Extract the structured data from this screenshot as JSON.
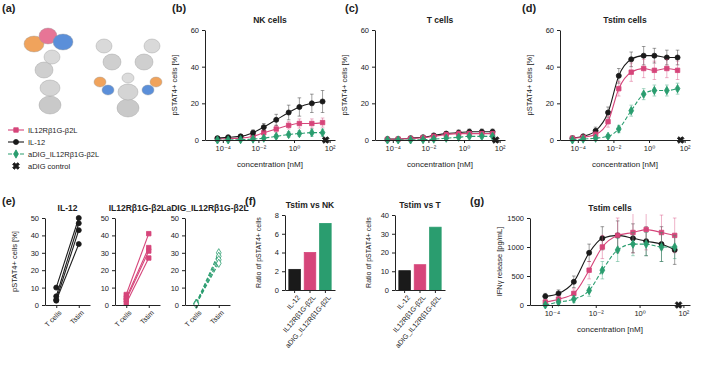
{
  "chart_data": [
    {
      "type": "structure",
      "panel_label": "(a)"
    },
    {
      "type": "line",
      "panel_label": "(b)",
      "title": "NK cells",
      "xlabel": "concentration [nM]",
      "ylabel": "pSTAT4+ cells [%]",
      "log": "x",
      "xlim": [
        1e-05,
        200
      ],
      "xticks": [
        {
          "value": 0.0001,
          "label": "10⁻⁴"
        },
        {
          "value": 0.01,
          "label": "10⁻²"
        },
        {
          "value": 1,
          "label": "10⁰"
        },
        {
          "value": 100,
          "label": "10²"
        }
      ],
      "ylim": [
        0,
        60
      ],
      "yticks": [
        0,
        20,
        40,
        60
      ],
      "legend": "left",
      "x": [
        5e-05,
        0.0002,
        0.001,
        0.005,
        0.02,
        0.1,
        0.5,
        2,
        10,
        40
      ],
      "series": [
        {
          "name": "IL12Rβ1G-β2L",
          "color": "#d6457a",
          "marker": "square",
          "line_style": "solid",
          "values": [
            0.5,
            0.8,
            1,
            2,
            4,
            6,
            8,
            9,
            9,
            9.5
          ],
          "errors": [
            0.3,
            0.4,
            0.5,
            1,
            1.5,
            2,
            2,
            2.5,
            2.5,
            2.5
          ]
        },
        {
          "name": "IL-12",
          "color": "#1a1a1a",
          "marker": "circle",
          "line_style": "solid",
          "values": [
            1,
            1.5,
            2,
            4,
            7,
            11,
            15,
            18,
            20,
            21
          ],
          "errors": [
            0.5,
            0.6,
            1,
            1.5,
            2,
            3,
            4,
            5,
            5,
            6
          ]
        },
        {
          "name": "aDIG_IL12Rβ1G-β2L",
          "color": "#2a9d6f",
          "marker": "diamond",
          "line_style": "dashed",
          "values": [
            0,
            0,
            0.2,
            0.5,
            1,
            2,
            3,
            3.5,
            4,
            4
          ],
          "errors": [
            0.2,
            0.2,
            0.3,
            0.5,
            0.8,
            1,
            1.5,
            1.5,
            2,
            2
          ]
        },
        {
          "name": "aDIG control",
          "color": "#1a1a1a",
          "marker": "x",
          "line_style": "none",
          "x": [
            60
          ],
          "values": [
            0
          ]
        }
      ]
    },
    {
      "type": "line",
      "panel_label": "(c)",
      "title": "T cells",
      "xlabel": "concentration [nM]",
      "ylabel": "pSTAT4+ cells [%]",
      "log": "x",
      "xlim": [
        1e-05,
        200
      ],
      "xticks": [
        {
          "value": 0.0001,
          "label": "10⁻⁴"
        },
        {
          "value": 0.01,
          "label": "10⁻²"
        },
        {
          "value": 1,
          "label": "10⁰"
        },
        {
          "value": 100,
          "label": "10²"
        }
      ],
      "ylim": [
        0,
        60
      ],
      "yticks": [
        0,
        20,
        40,
        60
      ],
      "x": [
        5e-05,
        0.0002,
        0.001,
        0.005,
        0.02,
        0.1,
        0.5,
        2,
        10,
        40
      ],
      "series": [
        {
          "color": "#1a1a1a",
          "marker": "circle",
          "line_style": "solid",
          "values": [
            0.5,
            0.5,
            1,
            1.5,
            2.5,
            3.5,
            4,
            4.5,
            4.5,
            4.5
          ],
          "errors": [
            0.5,
            0.5,
            0.5,
            0.8,
            1,
            1,
            1.5,
            1.5,
            1.5,
            1.5
          ]
        },
        {
          "color": "#d6457a",
          "marker": "square",
          "line_style": "solid",
          "values": [
            0.3,
            0.5,
            0.8,
            1.2,
            2,
            3,
            3.5,
            3.5,
            3.5,
            3.5
          ],
          "errors": [
            0.3,
            0.4,
            0.5,
            0.6,
            0.8,
            1,
            1,
            1,
            1,
            1
          ]
        },
        {
          "color": "#2a9d6f",
          "marker": "diamond",
          "line_style": "dashed",
          "values": [
            0,
            0,
            0,
            0.2,
            0.5,
            1,
            1.5,
            2,
            2,
            2
          ],
          "errors": [
            0.2,
            0.2,
            0.2,
            0.3,
            0.4,
            0.5,
            0.6,
            0.8,
            0.8,
            0.8
          ]
        },
        {
          "color": "#1a1a1a",
          "marker": "x",
          "line_style": "none",
          "x": [
            60
          ],
          "values": [
            0
          ]
        }
      ]
    },
    {
      "type": "line",
      "panel_label": "(d)",
      "title": "Tstim cells",
      "xlabel": "concentration [nM]",
      "ylabel": "pSTAT4+ cells [%]",
      "log": "x",
      "xlim": [
        1e-05,
        200
      ],
      "xticks": [
        {
          "value": 0.0001,
          "label": "10⁻⁴"
        },
        {
          "value": 0.01,
          "label": "10⁻²"
        },
        {
          "value": 1,
          "label": "10⁰"
        },
        {
          "value": 100,
          "label": "10²"
        }
      ],
      "ylim": [
        0,
        60
      ],
      "yticks": [
        0,
        20,
        40,
        60
      ],
      "x": [
        5e-05,
        0.0002,
        0.001,
        0.005,
        0.02,
        0.1,
        0.5,
        2,
        10,
        40
      ],
      "series": [
        {
          "color": "#1a1a1a",
          "marker": "circle",
          "line_style": "solid",
          "values": [
            1,
            2,
            5,
            15,
            35,
            44,
            46,
            46,
            45,
            45
          ],
          "errors": [
            0.5,
            1,
            2,
            3,
            4,
            4,
            5,
            4,
            4,
            4
          ]
        },
        {
          "color": "#d6457a",
          "marker": "square",
          "line_style": "solid",
          "values": [
            1,
            1.5,
            3,
            10,
            28,
            37,
            39,
            38,
            39,
            38
          ],
          "errors": [
            0.5,
            1,
            1.5,
            3,
            4,
            5,
            5,
            5,
            5,
            5
          ]
        },
        {
          "color": "#2a9d6f",
          "marker": "diamond",
          "line_style": "dashed",
          "values": [
            0,
            0.5,
            1,
            2,
            6,
            16,
            25,
            27,
            27,
            28
          ],
          "errors": [
            0.3,
            0.5,
            0.5,
            1,
            2,
            3,
            3,
            3,
            3,
            3
          ]
        },
        {
          "color": "#1a1a1a",
          "marker": "x",
          "line_style": "none",
          "x": [
            60
          ],
          "values": [
            0
          ]
        }
      ]
    },
    {
      "type": "line",
      "panel_label": "(e)",
      "title": "IL-12",
      "ylabel": "pSTAT4+ cells [%]",
      "categories": [
        "T cells",
        "Tstim"
      ],
      "ylim": [
        0,
        50
      ],
      "yticks": [
        0,
        10,
        20,
        30,
        40,
        50
      ],
      "color": "#1a1a1a",
      "marker": "circle",
      "line_style": "solid",
      "series": [
        {
          "values": [
            10,
            50
          ]
        },
        {
          "values": [
            5,
            47
          ]
        },
        {
          "values": [
            3,
            43
          ]
        },
        {
          "values": [
            2.5,
            35
          ]
        }
      ]
    },
    {
      "type": "line",
      "title": "IL12Rβ1G-β2L",
      "categories": [
        "T cells",
        "Tstim"
      ],
      "ylim": [
        0,
        50
      ],
      "yticks": [
        0,
        10,
        20,
        30,
        40,
        50
      ],
      "color": "#d6457a",
      "marker": "square",
      "line_style": "solid",
      "series": [
        {
          "values": [
            6,
            41
          ]
        },
        {
          "values": [
            4,
            33
          ]
        },
        {
          "values": [
            3,
            31
          ]
        },
        {
          "values": [
            1,
            27
          ]
        }
      ]
    },
    {
      "type": "line",
      "title": "aDIG_IL12Rβ1G-β2L",
      "categories": [
        "T cells",
        "Tstim"
      ],
      "ylim": [
        0,
        50
      ],
      "yticks": [
        0,
        10,
        20,
        30,
        40,
        50
      ],
      "color": "#2a9d6f",
      "marker": "open-diamond",
      "line_style": "dashed",
      "series": [
        {
          "values": [
            1,
            30
          ]
        },
        {
          "values": [
            1,
            28
          ]
        },
        {
          "values": [
            0.5,
            26
          ]
        },
        {
          "values": [
            0.5,
            24
          ]
        }
      ]
    },
    {
      "type": "bar",
      "panel_label": "(f)",
      "title": "Tstim vs NK",
      "ylabel": "Ratio of pSTAT4+ cells",
      "categories": [
        "IL-12",
        "IL12Rβ1G-β2L",
        "aDIG_IL12Rβ1G-β2L"
      ],
      "values": [
        2.2,
        4,
        7.1
      ],
      "colors": [
        "#1a1a1a",
        "#d6457a",
        "#2a9d6f"
      ],
      "ylim": [
        0,
        8
      ],
      "yticks": [
        0,
        2,
        4,
        6,
        8
      ]
    },
    {
      "type": "bar",
      "title": "Tstim vs T",
      "ylabel": "Ratio of pSTAT4+ cells",
      "categories": [
        "IL-12",
        "IL12Rβ1G-β2L",
        "aDIG_IL12Rβ1G-β2L"
      ],
      "values": [
        10.3,
        13.5,
        33.5
      ],
      "colors": [
        "#1a1a1a",
        "#d6457a",
        "#2a9d6f"
      ],
      "ylim": [
        0,
        40
      ],
      "yticks": [
        0,
        10,
        20,
        30,
        40
      ]
    },
    {
      "type": "line",
      "panel_label": "(g)",
      "title": "Tstim cells",
      "xlabel": "concentration [nM]",
      "ylabel": "IFNγ release [pg/mL]",
      "log": "x",
      "xlim": [
        1e-05,
        200
      ],
      "xticks": [
        {
          "value": 0.0001,
          "label": "10⁻⁴"
        },
        {
          "value": 0.01,
          "label": "10⁻²"
        },
        {
          "value": 1,
          "label": "10⁰"
        },
        {
          "value": 100,
          "label": "10²"
        }
      ],
      "ylim": [
        0,
        1500
      ],
      "yticks": [
        0,
        500,
        1000,
        1500
      ],
      "x": [
        5e-05,
        0.0002,
        0.001,
        0.005,
        0.02,
        0.1,
        0.5,
        2,
        10,
        40
      ],
      "series": [
        {
          "color": "#1a1a1a",
          "marker": "circle",
          "line_style": "solid",
          "values": [
            150,
            200,
            400,
            900,
            1150,
            1200,
            1150,
            1100,
            1050,
            950
          ],
          "errors": [
            50,
            60,
            100,
            150,
            200,
            250,
            250,
            250,
            300,
            250
          ]
        },
        {
          "color": "#d6457a",
          "marker": "square",
          "line_style": "solid",
          "values": [
            50,
            100,
            200,
            600,
            1000,
            1200,
            1250,
            1300,
            1250,
            1200
          ],
          "errors": [
            40,
            50,
            80,
            150,
            200,
            300,
            350,
            350,
            300,
            300
          ]
        },
        {
          "color": "#2a9d6f",
          "marker": "diamond",
          "line_style": "dashed",
          "values": [
            0,
            50,
            100,
            250,
            600,
            950,
            1050,
            1050,
            1000,
            1000
          ],
          "errors": [
            30,
            40,
            60,
            100,
            150,
            200,
            200,
            200,
            250,
            200
          ]
        },
        {
          "color": "#1a1a1a",
          "marker": "x",
          "line_style": "none",
          "x": [
            60
          ],
          "values": [
            0
          ]
        }
      ]
    }
  ]
}
